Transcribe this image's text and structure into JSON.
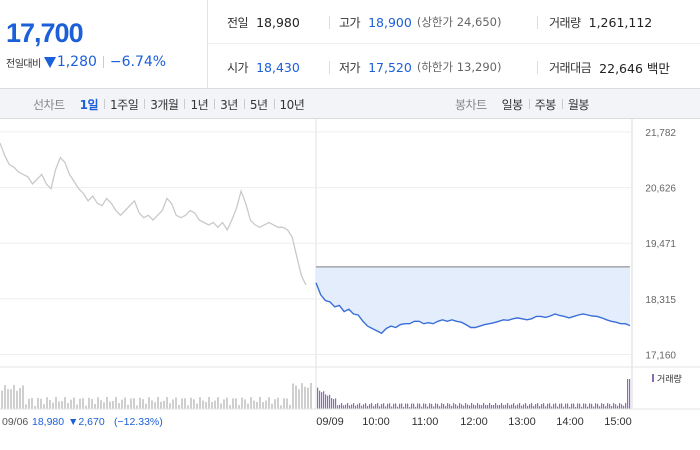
{
  "summary": {
    "price": "17,700",
    "change_label": "전일대비",
    "change_abs": "1,280",
    "change_pct": "−6.74%",
    "stats": {
      "prev_close": {
        "label": "전일",
        "value": "18,980"
      },
      "high": {
        "label": "고가",
        "value": "18,900",
        "extra": "(상한가 24,650)"
      },
      "volume": {
        "label": "거래량",
        "value": "1,261,112"
      },
      "open": {
        "label": "시가",
        "value": "18,430"
      },
      "low": {
        "label": "저가",
        "value": "17,520",
        "extra": "(하한가 13,290)"
      },
      "amount": {
        "label": "거래대금",
        "value": "22,646 백만"
      }
    }
  },
  "tabs": {
    "line_title": "선차트",
    "line": [
      "1일",
      "1주일",
      "3개월",
      "1년",
      "3년",
      "5년",
      "10년"
    ],
    "line_active": 0,
    "candle_title": "봉차트",
    "candle": [
      "일봉",
      "주봉",
      "월봉"
    ]
  },
  "colors": {
    "accent": "#1b5fd9",
    "prev_day_line": "#c9c9c9",
    "intraday_line": "#3a6fd8",
    "fill": "#e3edfb",
    "volume_today": "#8a6bb5",
    "volume_prev": "#cfcfcf"
  },
  "chart_data": {
    "type": "line",
    "y_ticks": [
      "21,782",
      "20,626",
      "19,471",
      "18,315",
      "17,160"
    ],
    "y_tick_values": [
      21782,
      20626,
      19471,
      18315,
      17160
    ],
    "ylim": [
      16900,
      22050
    ],
    "x_ticks": [
      "09/06",
      "09/09",
      "10:00",
      "11:00",
      "12:00",
      "13:00",
      "14:00",
      "15:00"
    ],
    "prev_day_label": "09/06",
    "prev_day_close": "18,980",
    "prev_day_change": "▼2,670",
    "prev_day_pct": "(−12.33%)",
    "reference_price": 18980,
    "volume_legend": "거래량",
    "prev_day_series": [
      21550,
      21300,
      21100,
      21050,
      20950,
      20900,
      20850,
      20700,
      20800,
      20900,
      20700,
      20600,
      21000,
      21250,
      21150,
      20900,
      20750,
      20600,
      20500,
      20350,
      20450,
      20300,
      20250,
      20400,
      20300,
      20150,
      20050,
      20150,
      20250,
      20350,
      20100,
      20000,
      20050,
      19950,
      20050,
      20150,
      20400,
      20300,
      20050,
      20000,
      20050,
      20150,
      20100,
      19950,
      19900,
      19850,
      19900,
      19800,
      19900,
      19750,
      19950,
      20200,
      20550,
      20300,
      19950,
      19850,
      19800,
      19850,
      19900,
      19850,
      19800,
      19800,
      19750,
      19600,
      19200,
      18800,
      18600
    ],
    "intraday_series": [
      18650,
      18400,
      18280,
      18250,
      18150,
      18180,
      18050,
      18100,
      18000,
      17980,
      17850,
      17750,
      17700,
      17650,
      17600,
      17700,
      17750,
      17720,
      17780,
      17800,
      17800,
      17850,
      17850,
      17800,
      17820,
      17800,
      17850,
      17880,
      17850,
      17880,
      17850,
      17830,
      17780,
      17720,
      17720,
      17750,
      17780,
      17800,
      17820,
      17850,
      17880,
      17870,
      17900,
      17920,
      17900,
      17880,
      17900,
      17950,
      17950,
      17930,
      17960,
      18000,
      17970,
      17950,
      17920,
      17950,
      17980,
      18000,
      17980,
      17960,
      17950,
      17920,
      17880,
      17850,
      17830,
      17800,
      17800,
      17760
    ]
  }
}
